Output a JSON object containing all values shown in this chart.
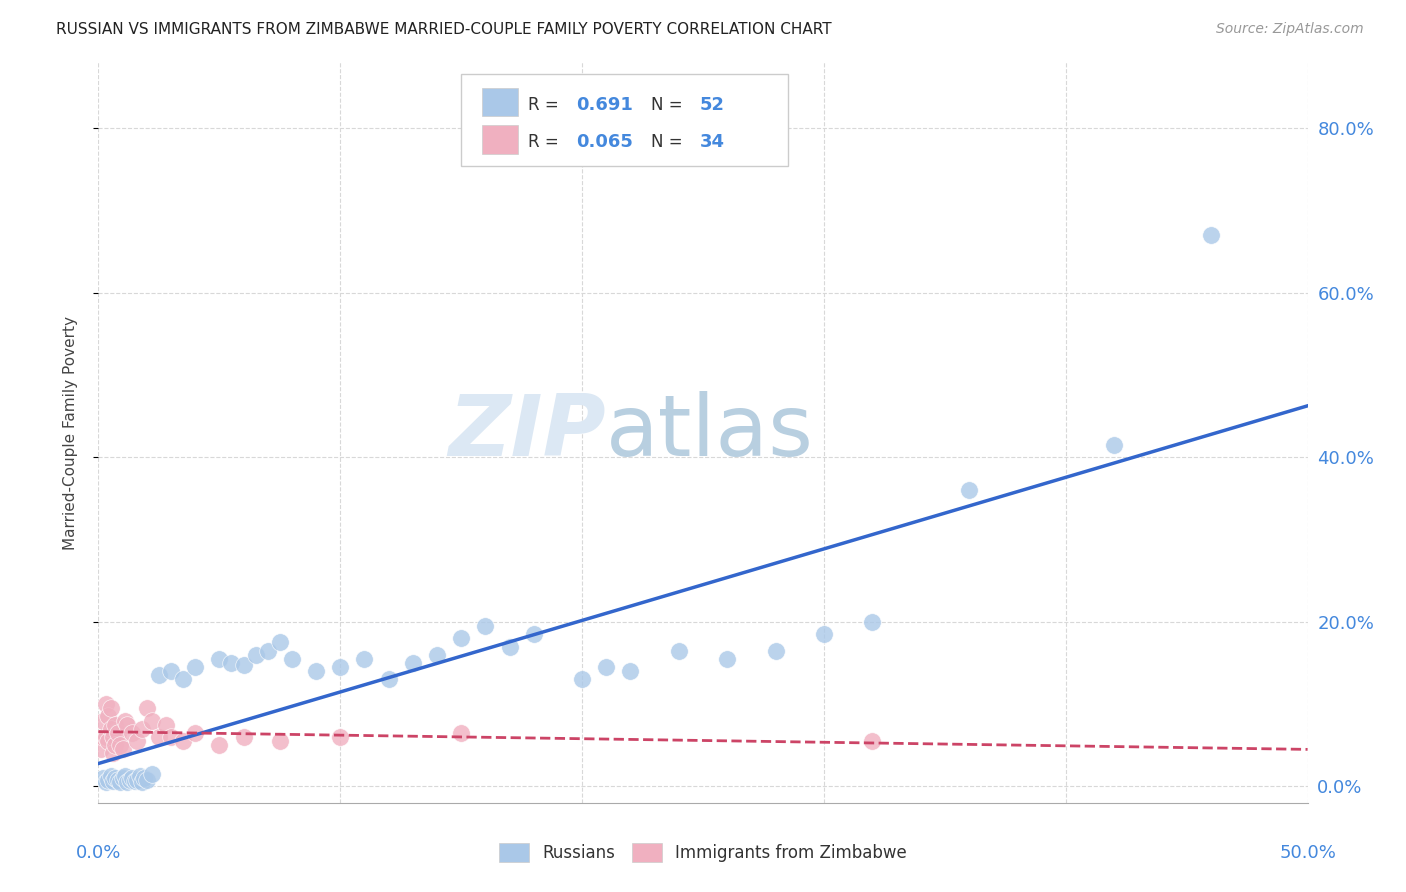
{
  "title": "RUSSIAN VS IMMIGRANTS FROM ZIMBABWE MARRIED-COUPLE FAMILY POVERTY CORRELATION CHART",
  "source": "Source: ZipAtlas.com",
  "ylabel": "Married-Couple Family Poverty",
  "ytick_labels": [
    "0.0%",
    "20.0%",
    "40.0%",
    "60.0%",
    "80.0%"
  ],
  "ytick_values": [
    0.0,
    0.2,
    0.4,
    0.6,
    0.8
  ],
  "xtick_labels": [
    "0.0%",
    "50.0%"
  ],
  "xtick_positions": [
    0.0,
    0.5
  ],
  "xlim": [
    0.0,
    0.5
  ],
  "ylim": [
    -0.02,
    0.88
  ],
  "background_color": "#ffffff",
  "grid_color": "#d8d8d8",
  "blue_color": "#aac8e8",
  "pink_color": "#f0b0c0",
  "blue_line_color": "#3366cc",
  "pink_line_color": "#cc4466",
  "legend_R1": "0.691",
  "legend_N1": "52",
  "legend_R2": "0.065",
  "legend_N2": "34",
  "watermark_zip": "ZIP",
  "watermark_atlas": "atlas",
  "russians_x": [
    0.002,
    0.003,
    0.004,
    0.005,
    0.006,
    0.007,
    0.008,
    0.009,
    0.01,
    0.011,
    0.012,
    0.013,
    0.014,
    0.015,
    0.016,
    0.017,
    0.018,
    0.019,
    0.02,
    0.022,
    0.025,
    0.03,
    0.035,
    0.04,
    0.05,
    0.055,
    0.06,
    0.065,
    0.07,
    0.075,
    0.08,
    0.09,
    0.1,
    0.11,
    0.12,
    0.13,
    0.14,
    0.15,
    0.16,
    0.17,
    0.18,
    0.2,
    0.21,
    0.22,
    0.24,
    0.26,
    0.28,
    0.3,
    0.32,
    0.36,
    0.42,
    0.46
  ],
  "russians_y": [
    0.01,
    0.005,
    0.008,
    0.012,
    0.006,
    0.01,
    0.008,
    0.005,
    0.01,
    0.012,
    0.005,
    0.008,
    0.01,
    0.006,
    0.008,
    0.012,
    0.005,
    0.01,
    0.008,
    0.015,
    0.135,
    0.14,
    0.13,
    0.145,
    0.155,
    0.15,
    0.148,
    0.16,
    0.165,
    0.175,
    0.155,
    0.14,
    0.145,
    0.155,
    0.13,
    0.15,
    0.16,
    0.18,
    0.195,
    0.17,
    0.185,
    0.13,
    0.145,
    0.14,
    0.165,
    0.155,
    0.165,
    0.185,
    0.2,
    0.36,
    0.415,
    0.67
  ],
  "zimbabwe_x": [
    0.001,
    0.002,
    0.002,
    0.003,
    0.003,
    0.004,
    0.004,
    0.005,
    0.005,
    0.006,
    0.006,
    0.007,
    0.007,
    0.008,
    0.009,
    0.01,
    0.011,
    0.012,
    0.014,
    0.016,
    0.018,
    0.02,
    0.022,
    0.025,
    0.028,
    0.03,
    0.035,
    0.04,
    0.05,
    0.06,
    0.075,
    0.1,
    0.15,
    0.32
  ],
  "zimbabwe_y": [
    0.045,
    0.06,
    0.08,
    0.06,
    0.1,
    0.055,
    0.085,
    0.07,
    0.095,
    0.06,
    0.04,
    0.075,
    0.05,
    0.065,
    0.05,
    0.045,
    0.08,
    0.075,
    0.065,
    0.055,
    0.07,
    0.095,
    0.08,
    0.06,
    0.075,
    0.06,
    0.055,
    0.065,
    0.05,
    0.06,
    0.055,
    0.06,
    0.065,
    0.055
  ]
}
